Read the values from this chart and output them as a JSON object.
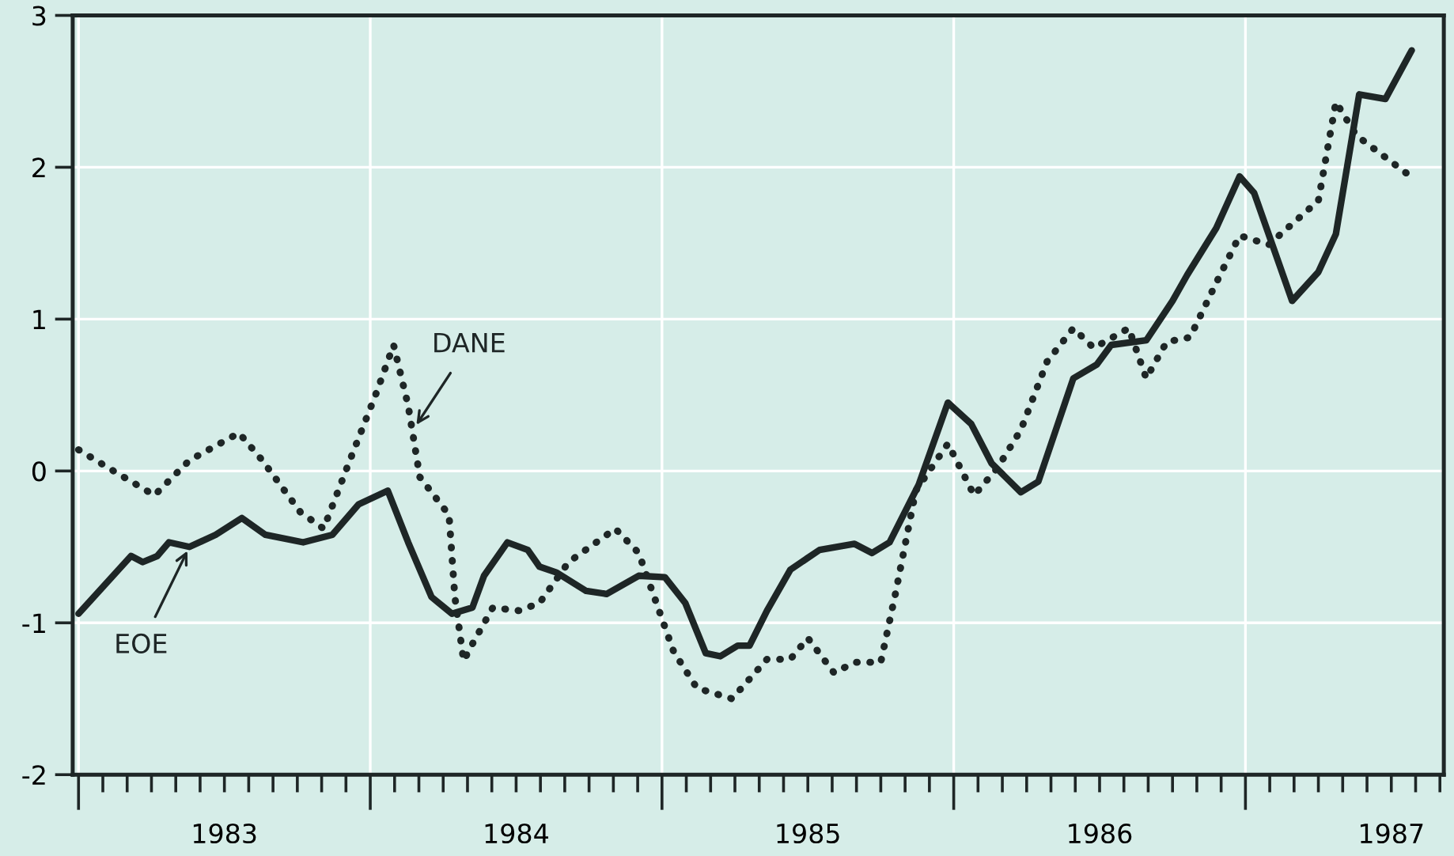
{
  "chart_data": {
    "type": "line",
    "xlim": [
      1982.98,
      1987.68
    ],
    "ylim": [
      -2,
      3
    ],
    "yticks": [
      -2,
      -1,
      0,
      1,
      2,
      3
    ],
    "xticks": [
      {
        "value": 1983,
        "label": null
      },
      {
        "value": 1983.5,
        "label": "1983"
      },
      {
        "value": 1984,
        "label": null
      },
      {
        "value": 1984.5,
        "label": "1984"
      },
      {
        "value": 1985,
        "label": null
      },
      {
        "value": 1985.5,
        "label": "1985"
      },
      {
        "value": 1986,
        "label": null
      },
      {
        "value": 1986.5,
        "label": "1986"
      },
      {
        "value": 1987,
        "label": null
      },
      {
        "value": 1987.5,
        "label": "1987"
      }
    ],
    "grid": true,
    "series": [
      {
        "color": "#1e2626",
        "line_style": "solid",
        "x": [
          1983.0,
          1983.18,
          1983.22,
          1983.27,
          1983.31,
          1983.38,
          1983.47,
          1983.56,
          1983.64,
          1983.77,
          1983.87,
          1983.96,
          1984.06,
          1984.13,
          1984.21,
          1984.28,
          1984.35,
          1984.39,
          1984.47,
          1984.54,
          1984.58,
          1984.64,
          1984.74,
          1984.81,
          1984.92,
          1985.01,
          1985.08,
          1985.15,
          1985.2,
          1985.26,
          1985.3,
          1985.36,
          1985.44,
          1985.54,
          1985.66,
          1985.72,
          1985.78,
          1985.88,
          1985.98,
          1986.06,
          1986.13,
          1986.23,
          1986.29,
          1986.35,
          1986.41,
          1986.49,
          1986.54,
          1986.66,
          1986.75,
          1986.8,
          1986.9,
          1986.98,
          1987.03,
          1987.16,
          1987.25,
          1987.31,
          1987.39,
          1987.48,
          1987.57
        ],
        "values": [
          -0.94,
          -0.56,
          -0.6,
          -0.56,
          -0.47,
          -0.5,
          -0.42,
          -0.31,
          -0.42,
          -0.47,
          -0.42,
          -0.22,
          -0.13,
          -0.47,
          -0.83,
          -0.94,
          -0.9,
          -0.69,
          -0.47,
          -0.52,
          -0.63,
          -0.67,
          -0.79,
          -0.81,
          -0.69,
          -0.7,
          -0.87,
          -1.2,
          -1.22,
          -1.15,
          -1.15,
          -0.92,
          -0.65,
          -0.52,
          -0.48,
          -0.54,
          -0.47,
          -0.09,
          0.45,
          0.31,
          0.05,
          -0.14,
          -0.07,
          0.27,
          0.61,
          0.7,
          0.83,
          0.86,
          1.12,
          1.29,
          1.6,
          1.94,
          1.83,
          1.12,
          1.31,
          1.56,
          2.48,
          2.45,
          2.77
        ]
      },
      {
        "color": "#1e2626",
        "line_style": "dotted",
        "x": [
          1983.0,
          1983.12,
          1983.26,
          1983.38,
          1983.55,
          1983.63,
          1983.76,
          1983.84,
          1983.93,
          1984.02,
          1984.08,
          1984.13,
          1984.17,
          1984.27,
          1984.29,
          1984.32,
          1984.35,
          1984.42,
          1984.51,
          1984.58,
          1984.68,
          1984.84,
          1984.92,
          1985.04,
          1985.12,
          1985.24,
          1985.36,
          1985.44,
          1985.5,
          1985.59,
          1985.66,
          1985.75,
          1985.8,
          1985.87,
          1985.98,
          1986.07,
          1986.15,
          1986.23,
          1986.32,
          1986.41,
          1986.48,
          1986.6,
          1986.66,
          1986.73,
          1986.81,
          1986.9,
          1986.98,
          1987.08,
          1987.25,
          1987.31,
          1987.38,
          1987.58
        ],
        "values": [
          0.14,
          0.0,
          -0.16,
          0.07,
          0.25,
          0.07,
          -0.27,
          -0.38,
          0.07,
          0.51,
          0.83,
          0.43,
          -0.04,
          -0.29,
          -0.83,
          -1.25,
          -1.14,
          -0.9,
          -0.92,
          -0.87,
          -0.6,
          -0.38,
          -0.54,
          -1.19,
          -1.43,
          -1.5,
          -1.24,
          -1.24,
          -1.1,
          -1.33,
          -1.26,
          -1.26,
          -0.81,
          -0.13,
          0.18,
          -0.16,
          0.02,
          0.27,
          0.72,
          0.94,
          0.81,
          0.94,
          0.61,
          0.85,
          0.88,
          1.24,
          1.55,
          1.49,
          1.78,
          2.43,
          2.21,
          1.92
        ]
      }
    ],
    "annotations": [
      {
        "text": "DANE",
        "x": 1984.15,
        "y": 0.28
      },
      {
        "text": "EOE",
        "x": 1983.38,
        "y": -0.5
      }
    ]
  }
}
